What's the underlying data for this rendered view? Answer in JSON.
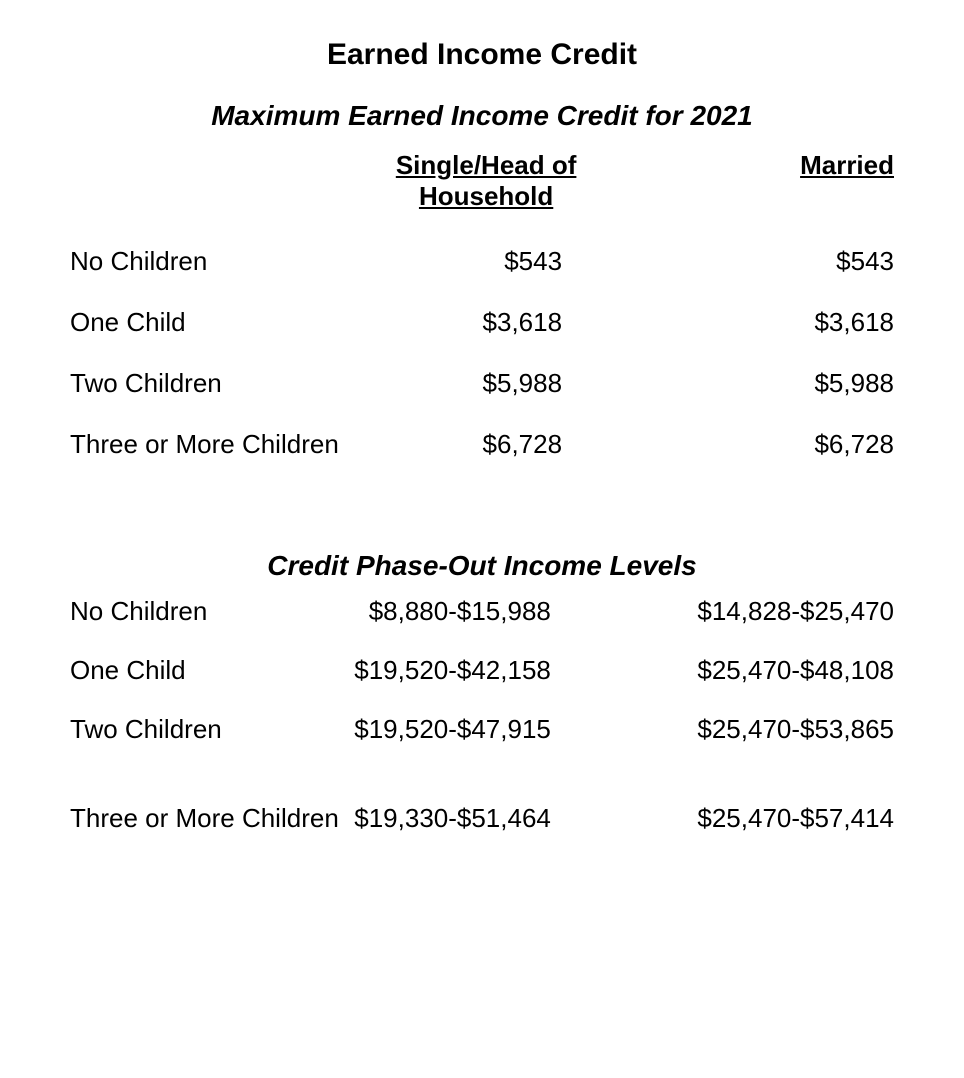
{
  "title": "Earned Income Credit",
  "subtitle_max": "Maximum Earned Income Credit for 2021",
  "subtitle_phase": "Credit Phase-Out Income Levels",
  "columns": {
    "single": "Single/Head of Household",
    "married": "Married"
  },
  "max_credit": {
    "rows": [
      {
        "label": "No Children",
        "single": "$543",
        "married": "$543"
      },
      {
        "label": "One Child",
        "single": "$3,618",
        "married": "$3,618"
      },
      {
        "label": "Two Children",
        "single": "$5,988",
        "married": "$5,988"
      },
      {
        "label": "Three or More Children",
        "single": "$6,728",
        "married": "$6,728"
      }
    ]
  },
  "phase_out": {
    "rows": [
      {
        "label": "No Children",
        "single": "$8,880-$15,988",
        "married": "$14,828-$25,470"
      },
      {
        "label": "One Child",
        "single": "$19,520-$42,158",
        "married": "$25,470-$48,108"
      },
      {
        "label": "Two Children",
        "single": "$19,520-$47,915",
        "married": "$25,470-$53,865"
      },
      {
        "label": "Three or More Children",
        "single": "$19,330-$51,464",
        "married": "$25,470-$57,414"
      }
    ]
  },
  "style": {
    "background_color": "#ffffff",
    "text_color": "#000000",
    "title_fontsize": 30,
    "subtitle_fontsize": 28,
    "header_fontsize": 26,
    "cell_fontsize": 26,
    "font_family": "Helvetica Neue"
  }
}
